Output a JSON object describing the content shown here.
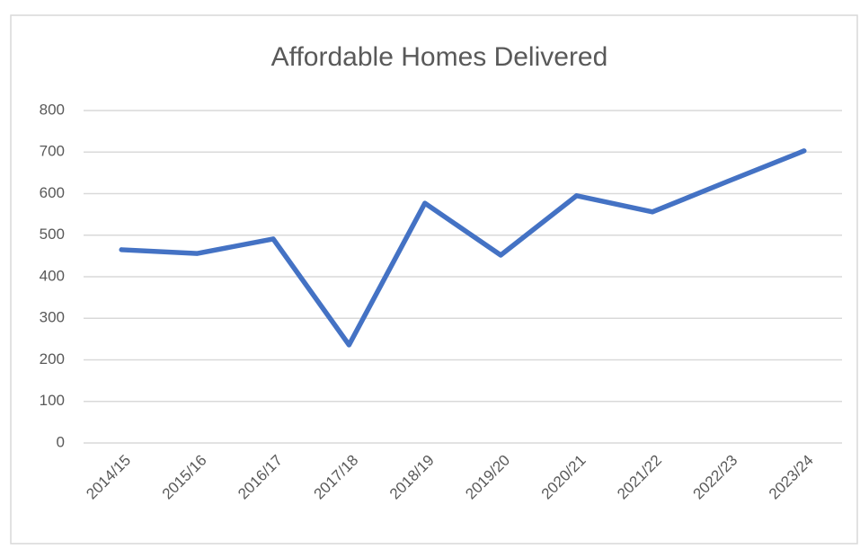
{
  "chart_data": {
    "type": "line",
    "title": "Affordable Homes Delivered",
    "categories": [
      "2014/15",
      "2015/16",
      "2016/17",
      "2017/18",
      "2018/19",
      "2019/20",
      "2020/21",
      "2021/22",
      "2022/23",
      "2023/24"
    ],
    "series": [
      {
        "name": "Affordable Homes Delivered",
        "color": "#4472c4",
        "values": [
          465,
          456,
          491,
          236,
          577,
          452,
          595,
          556,
          630,
          703
        ]
      }
    ],
    "ylim": [
      0,
      800
    ],
    "yticks": [
      0,
      100,
      200,
      300,
      400,
      500,
      600,
      700,
      800
    ],
    "grid": true
  }
}
